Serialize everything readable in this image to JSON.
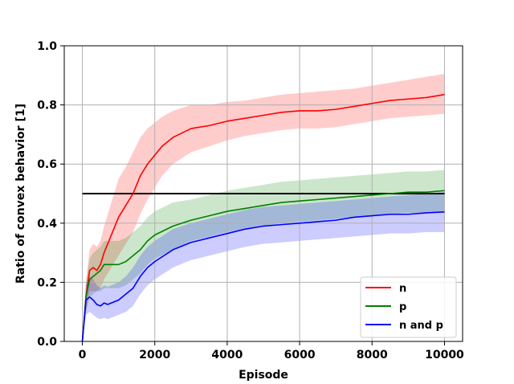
{
  "chart_data": {
    "type": "line",
    "title": "",
    "xlabel": "Episode",
    "ylabel": "Ratio of convex behavior [1]",
    "xlim": [
      -500,
      10500
    ],
    "ylim": [
      0.0,
      1.0
    ],
    "x_ticks": [
      0,
      2000,
      4000,
      6000,
      8000,
      10000
    ],
    "y_ticks": [
      0.0,
      0.2,
      0.4,
      0.6,
      0.8,
      1.0
    ],
    "x_tick_labels": [
      "0",
      "2000",
      "4000",
      "6000",
      "8000",
      "10000"
    ],
    "y_tick_labels": [
      "0.0",
      "0.2",
      "0.4",
      "0.6",
      "0.8",
      "1.0"
    ],
    "grid": true,
    "legend": {
      "position": "lower-right",
      "labels": [
        "n",
        "p",
        "n and p"
      ]
    },
    "reference_line": {
      "y": 0.5,
      "x_start": 0,
      "x_end": 10000,
      "color": "#000000"
    },
    "series": [
      {
        "name": "n",
        "color": "#ff0000",
        "band_color": "#ff0000",
        "x": [
          0,
          100,
          200,
          300,
          400,
          500,
          600,
          800,
          1000,
          1200,
          1400,
          1600,
          1800,
          2000,
          2200,
          2500,
          3000,
          3500,
          4000,
          4500,
          5000,
          5500,
          6000,
          6500,
          7000,
          7500,
          8000,
          8500,
          9000,
          9500,
          10000
        ],
        "values": [
          0.0,
          0.15,
          0.24,
          0.25,
          0.24,
          0.26,
          0.3,
          0.36,
          0.42,
          0.46,
          0.5,
          0.56,
          0.6,
          0.63,
          0.66,
          0.69,
          0.72,
          0.73,
          0.745,
          0.755,
          0.765,
          0.775,
          0.78,
          0.78,
          0.785,
          0.795,
          0.805,
          0.815,
          0.82,
          0.825,
          0.835
        ],
        "lower": [
          0.0,
          0.1,
          0.17,
          0.17,
          0.17,
          0.18,
          0.21,
          0.25,
          0.29,
          0.33,
          0.37,
          0.43,
          0.48,
          0.52,
          0.56,
          0.6,
          0.64,
          0.66,
          0.68,
          0.695,
          0.705,
          0.715,
          0.72,
          0.72,
          0.725,
          0.735,
          0.745,
          0.755,
          0.76,
          0.765,
          0.77
        ],
        "upper": [
          0.0,
          0.2,
          0.31,
          0.33,
          0.32,
          0.34,
          0.39,
          0.47,
          0.55,
          0.59,
          0.64,
          0.69,
          0.72,
          0.74,
          0.76,
          0.78,
          0.8,
          0.8,
          0.81,
          0.815,
          0.825,
          0.835,
          0.84,
          0.845,
          0.85,
          0.855,
          0.865,
          0.875,
          0.885,
          0.895,
          0.905
        ]
      },
      {
        "name": "p",
        "color": "#008000",
        "band_color": "#008000",
        "x": [
          0,
          100,
          200,
          300,
          400,
          500,
          600,
          700,
          800,
          1000,
          1200,
          1400,
          1600,
          1800,
          2000,
          2500,
          3000,
          3500,
          4000,
          4500,
          5000,
          5500,
          6000,
          6500,
          7000,
          7500,
          8000,
          8500,
          9000,
          9500,
          10000
        ],
        "values": [
          0.0,
          0.15,
          0.21,
          0.22,
          0.23,
          0.24,
          0.26,
          0.26,
          0.26,
          0.26,
          0.27,
          0.29,
          0.31,
          0.34,
          0.36,
          0.39,
          0.41,
          0.425,
          0.44,
          0.45,
          0.46,
          0.47,
          0.475,
          0.48,
          0.485,
          0.49,
          0.495,
          0.5,
          0.505,
          0.505,
          0.51
        ],
        "lower": [
          0.0,
          0.1,
          0.15,
          0.16,
          0.17,
          0.17,
          0.18,
          0.18,
          0.18,
          0.18,
          0.19,
          0.21,
          0.23,
          0.26,
          0.28,
          0.31,
          0.34,
          0.355,
          0.37,
          0.38,
          0.39,
          0.4,
          0.405,
          0.41,
          0.415,
          0.42,
          0.425,
          0.43,
          0.435,
          0.435,
          0.44
        ],
        "upper": [
          0.0,
          0.2,
          0.28,
          0.3,
          0.31,
          0.32,
          0.34,
          0.34,
          0.34,
          0.34,
          0.35,
          0.37,
          0.39,
          0.42,
          0.44,
          0.47,
          0.48,
          0.495,
          0.51,
          0.52,
          0.53,
          0.54,
          0.545,
          0.55,
          0.555,
          0.56,
          0.565,
          0.57,
          0.575,
          0.575,
          0.58
        ]
      },
      {
        "name": "n and p",
        "color": "#0000ff",
        "band_color": "#0000ff",
        "x": [
          0,
          100,
          200,
          300,
          400,
          500,
          600,
          700,
          800,
          1000,
          1200,
          1400,
          1600,
          1800,
          2000,
          2500,
          3000,
          3500,
          4000,
          4500,
          5000,
          5500,
          6000,
          6500,
          7000,
          7500,
          8000,
          8500,
          9000,
          9500,
          10000
        ],
        "values": [
          0.0,
          0.14,
          0.15,
          0.14,
          0.125,
          0.12,
          0.13,
          0.125,
          0.13,
          0.14,
          0.16,
          0.18,
          0.22,
          0.25,
          0.27,
          0.31,
          0.335,
          0.35,
          0.365,
          0.38,
          0.39,
          0.395,
          0.4,
          0.405,
          0.41,
          0.42,
          0.425,
          0.43,
          0.43,
          0.435,
          0.438
        ],
        "lower": [
          0.0,
          0.09,
          0.1,
          0.09,
          0.08,
          0.075,
          0.08,
          0.075,
          0.08,
          0.09,
          0.1,
          0.12,
          0.16,
          0.19,
          0.21,
          0.25,
          0.275,
          0.29,
          0.305,
          0.32,
          0.33,
          0.335,
          0.34,
          0.345,
          0.35,
          0.355,
          0.36,
          0.365,
          0.365,
          0.37,
          0.37
        ],
        "upper": [
          0.0,
          0.19,
          0.22,
          0.21,
          0.19,
          0.18,
          0.19,
          0.185,
          0.19,
          0.2,
          0.22,
          0.25,
          0.29,
          0.32,
          0.34,
          0.38,
          0.4,
          0.415,
          0.43,
          0.445,
          0.455,
          0.46,
          0.465,
          0.47,
          0.475,
          0.48,
          0.485,
          0.49,
          0.495,
          0.5,
          0.505
        ]
      }
    ]
  }
}
